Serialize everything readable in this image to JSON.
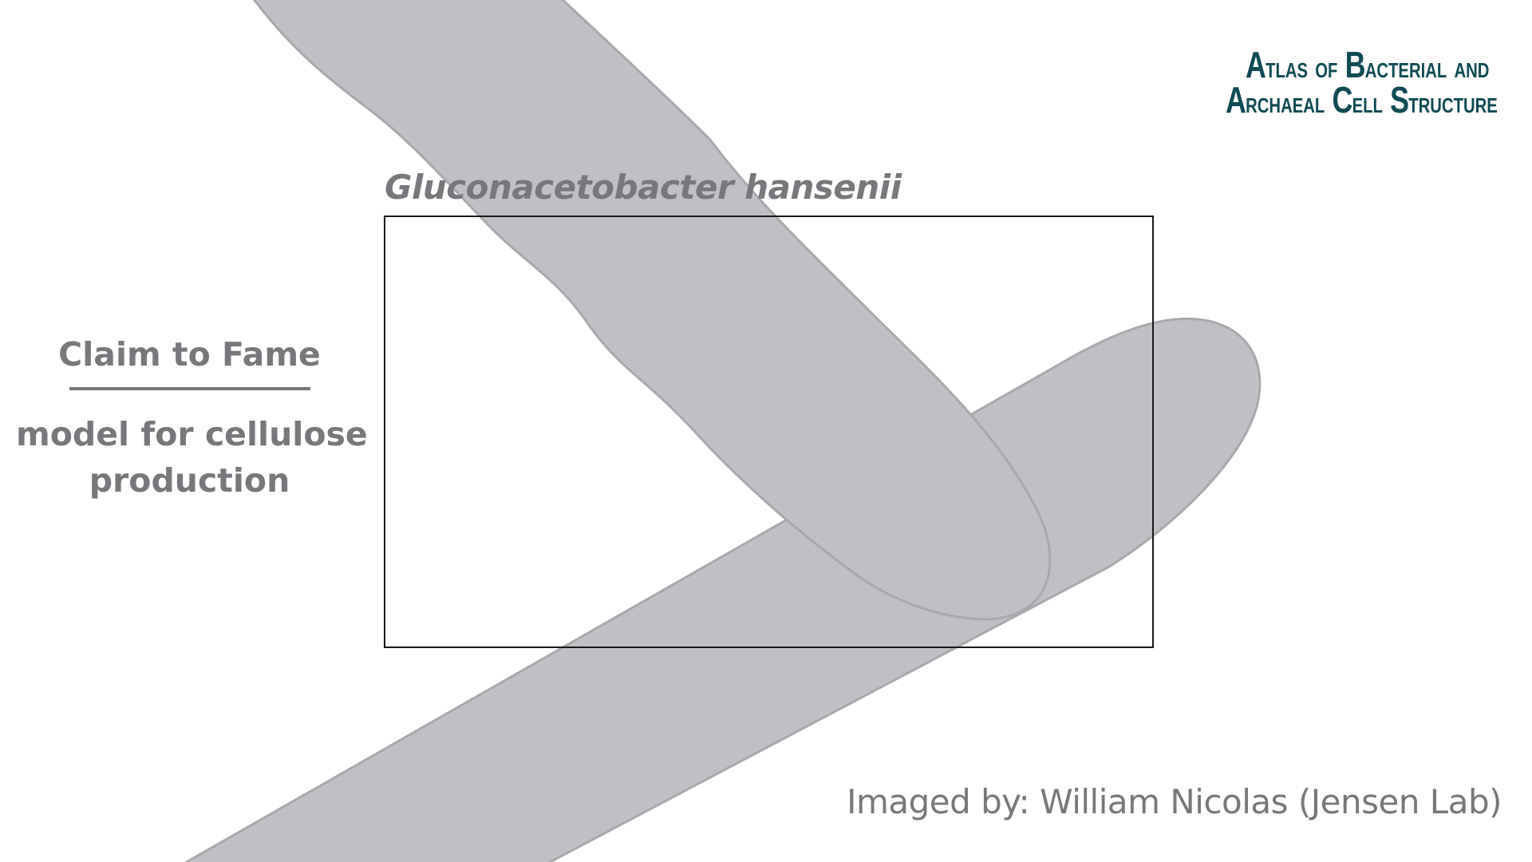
{
  "species": {
    "name": "Gluconacetobacter hansenii"
  },
  "claim": {
    "heading": "Claim to Fame",
    "line1": "model for cellulose",
    "line2": "production"
  },
  "credit": {
    "text": "Imaged by: William Nicolas (Jensen Lab)"
  },
  "logo": {
    "line1_word1_cap": "A",
    "line1_word1_rest": "TLAS",
    "line1_of": "OF",
    "line1_word2_cap": "B",
    "line1_word2_rest": "ACTERIAL",
    "line1_and": "AND",
    "line2_word1_cap": "A",
    "line2_word1_rest": "RCHAEAL",
    "line2_word2_cap": "C",
    "line2_word2_rest": "ELL",
    "line2_word3_cap": "S",
    "line2_word3_rest": "TRUCTURE"
  },
  "colors": {
    "cell_fill": "#bfc0c3",
    "cell_stroke": "#a8a9ac",
    "text_gray": "#77787b",
    "logo_teal": "#0f4a52",
    "frame": "#1a1a1a"
  }
}
